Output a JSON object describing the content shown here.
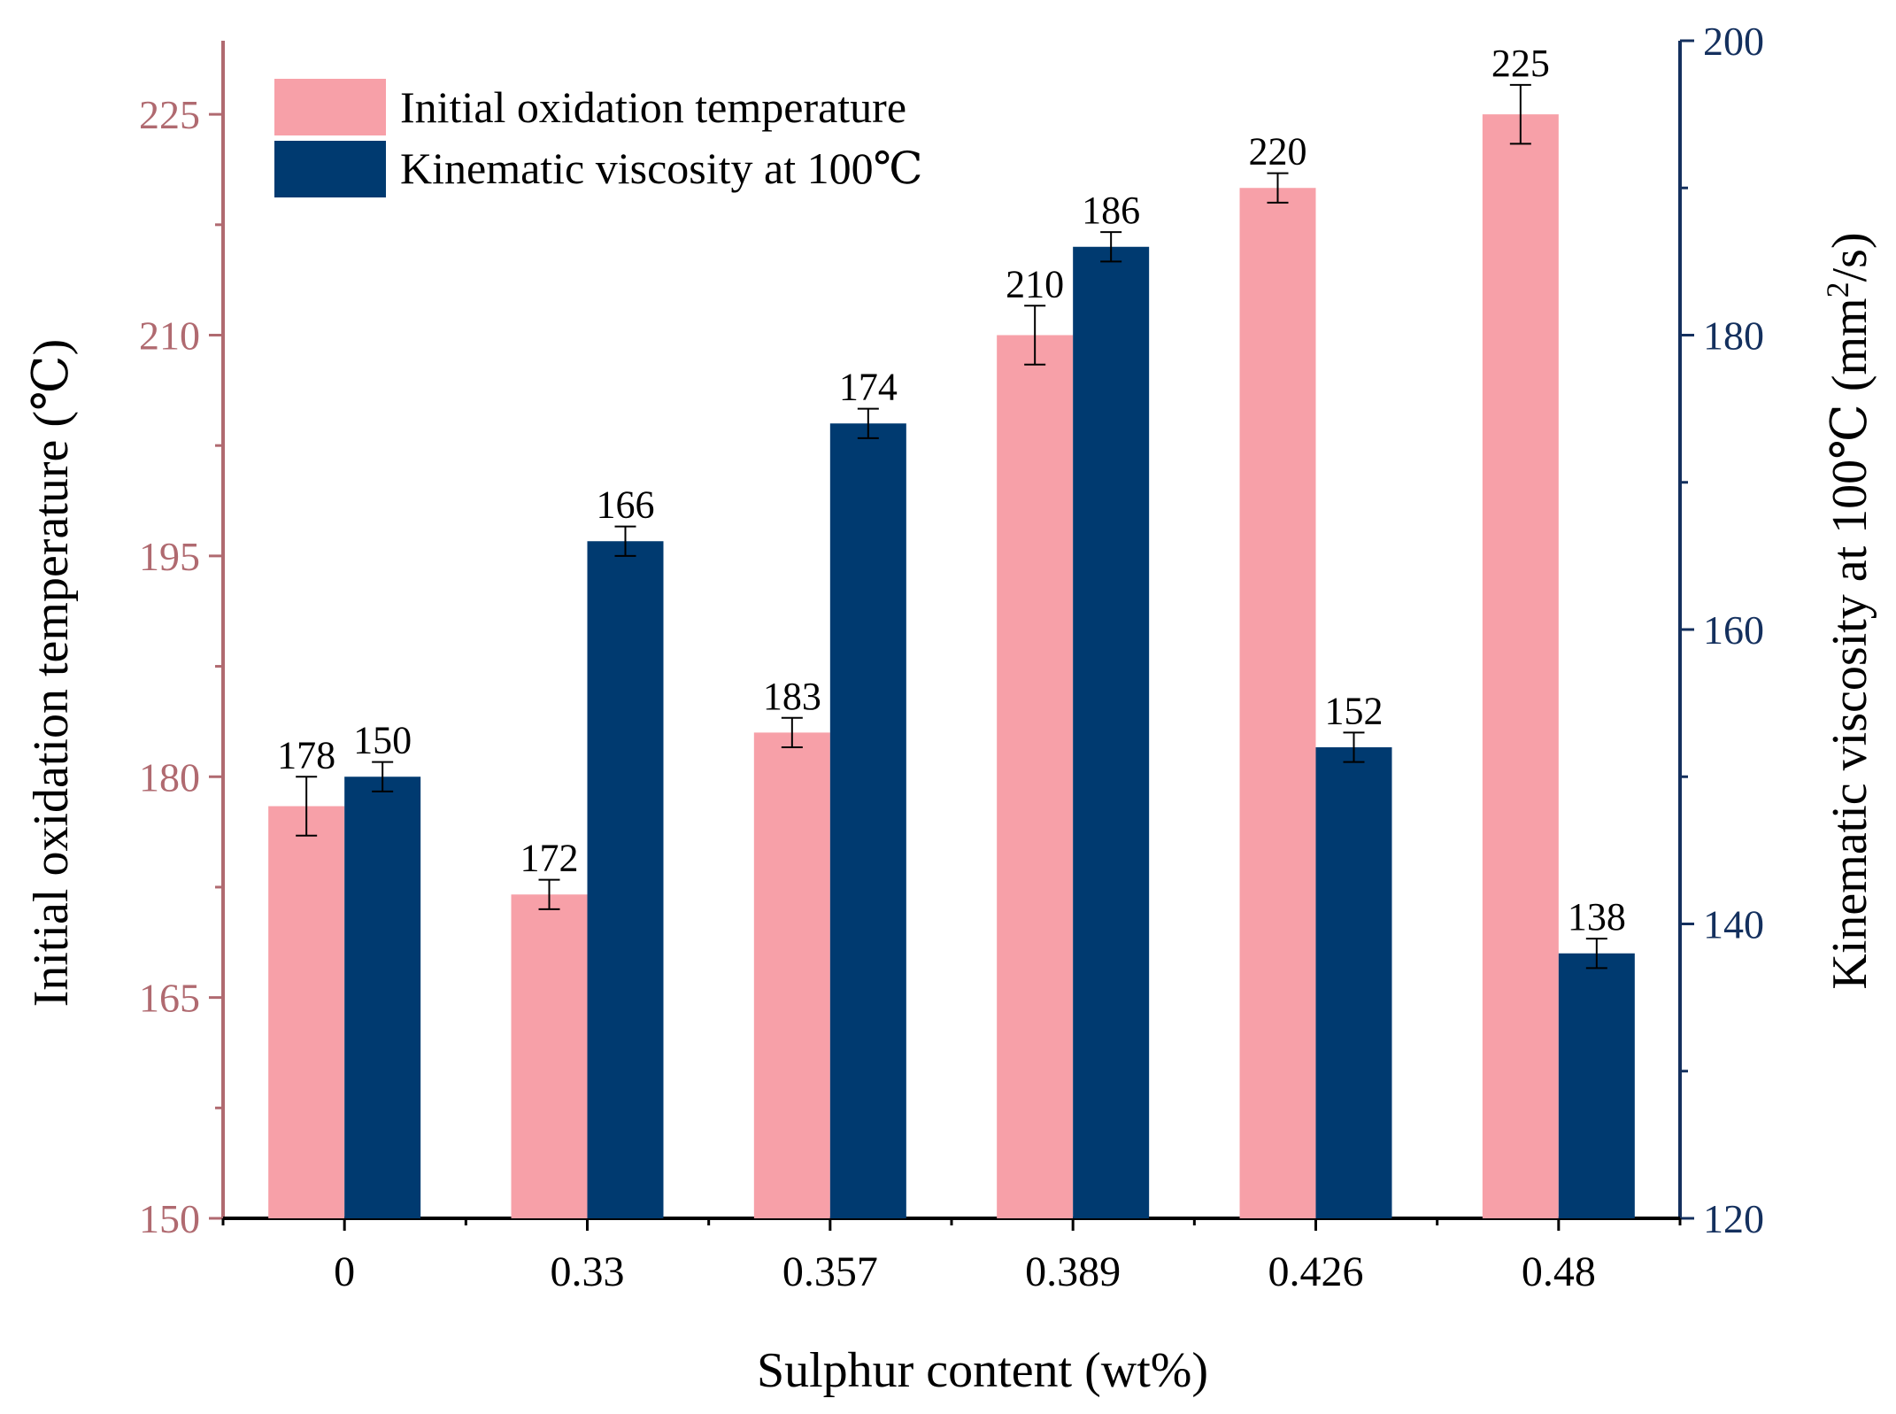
{
  "chart_data": {
    "type": "bar",
    "categories": [
      "0",
      "0.33",
      "0.357",
      "0.389",
      "0.426",
      "0.48"
    ],
    "xlabel": "Sulphur content (wt%)",
    "ylabel_left": "Initial oxidation temperature (℃)",
    "ylabel_right_prefix": "Kinematic viscosity at 100℃ (mm",
    "ylabel_right_sup": "2",
    "ylabel_right_suffix": "/s)",
    "ylim_left": [
      150,
      230
    ],
    "yticks_left": [
      150,
      165,
      180,
      195,
      210,
      225
    ],
    "ylim_right": [
      120,
      200
    ],
    "yticks_right": [
      120,
      140,
      160,
      180,
      200
    ],
    "legend_position": "top-left",
    "grid": false,
    "series": [
      {
        "name": "Initial oxidation temperature",
        "axis": "left",
        "color": "#f7a0a8",
        "values": [
          178,
          172,
          183,
          210,
          220,
          225
        ],
        "errors": [
          2,
          1,
          1,
          2,
          1,
          2
        ],
        "labels": [
          "178",
          "172",
          "183",
          "210",
          "220",
          "225"
        ]
      },
      {
        "name": "Kinematic viscosity at 100℃",
        "axis": "right",
        "color": "#003a70",
        "values": [
          150,
          166,
          174,
          186,
          152,
          138
        ],
        "errors": [
          1,
          1,
          1,
          1,
          1,
          1
        ],
        "labels": [
          "150",
          "166",
          "174",
          "186",
          "152",
          "138"
        ]
      }
    ],
    "axis_colors": {
      "left": "#b06a70",
      "right": "#14305e"
    }
  }
}
